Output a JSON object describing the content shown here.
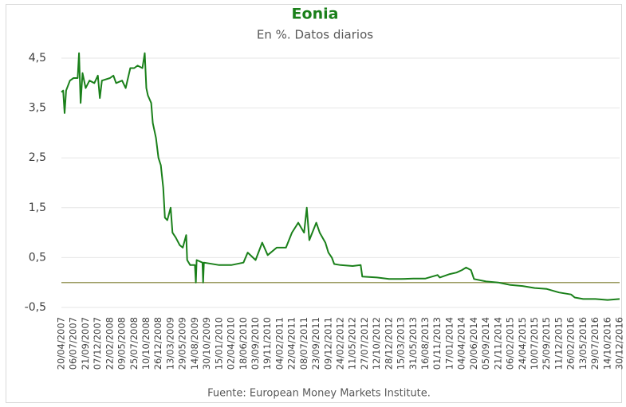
{
  "chart_data": {
    "type": "line",
    "title": "Eonia",
    "subtitle": "En %. Datos diarios",
    "source": "Fuente: European Money Markets Institute.",
    "x": [
      "2007-04-20",
      "2007-05-01",
      "2007-05-10",
      "2007-05-20",
      "2007-06-13",
      "2007-07-06",
      "2007-08-01",
      "2007-08-10",
      "2007-08-20",
      "2007-09-01",
      "2007-09-21",
      "2007-10-15",
      "2007-11-15",
      "2007-12-07",
      "2007-12-20",
      "2008-01-02",
      "2008-02-22",
      "2008-03-15",
      "2008-04-01",
      "2008-05-09",
      "2008-06-01",
      "2008-06-30",
      "2008-07-25",
      "2008-08-15",
      "2008-09-15",
      "2008-09-30",
      "2008-10-10",
      "2008-10-20",
      "2008-11-10",
      "2008-11-20",
      "2008-12-10",
      "2008-12-26",
      "2009-01-10",
      "2009-01-25",
      "2009-02-05",
      "2009-02-20",
      "2009-03-13",
      "2009-03-25",
      "2009-04-15",
      "2009-05-10",
      "2009-05-29",
      "2009-06-20",
      "2009-06-26",
      "2009-07-15",
      "2009-08-14",
      "2009-08-20",
      "2009-08-25",
      "2009-10-01",
      "2009-10-05",
      "2009-10-10",
      "2010-01-15",
      "2010-04-02",
      "2010-06-18",
      "2010-07-15",
      "2010-09-03",
      "2010-10-15",
      "2010-11-19",
      "2011-01-15",
      "2011-02-04",
      "2011-03-15",
      "2011-04-22",
      "2011-06-01",
      "2011-07-08",
      "2011-07-25",
      "2011-08-10",
      "2011-09-23",
      "2011-10-15",
      "2011-11-20",
      "2011-12-09",
      "2011-12-31",
      "2012-01-15",
      "2012-02-24",
      "2012-05-11",
      "2012-07-01",
      "2012-07-11",
      "2012-10-12",
      "2012-12-28",
      "2013-03-15",
      "2013-05-31",
      "2013-08-16",
      "2013-11-01",
      "2013-11-15",
      "2014-01-17",
      "2014-03-01",
      "2014-04-04",
      "2014-05-01",
      "2014-06-01",
      "2014-06-20",
      "2014-09-05",
      "2014-11-21",
      "2015-02-06",
      "2015-04-24",
      "2015-07-10",
      "2015-09-25",
      "2015-12-11",
      "2016-02-26",
      "2016-03-20",
      "2016-05-13",
      "2016-07-29",
      "2016-10-14",
      "2016-12-30"
    ],
    "series": [
      {
        "name": "Eonia",
        "color": "#1a801a",
        "values": [
          3.82,
          3.85,
          3.4,
          3.85,
          4.05,
          4.1,
          4.1,
          4.6,
          3.6,
          4.2,
          3.9,
          4.05,
          4.0,
          4.15,
          3.7,
          4.05,
          4.1,
          4.15,
          4.0,
          4.05,
          3.9,
          4.3,
          4.3,
          4.35,
          4.3,
          4.6,
          3.9,
          3.75,
          3.6,
          3.2,
          2.9,
          2.5,
          2.35,
          1.9,
          1.3,
          1.25,
          1.5,
          1.0,
          0.9,
          0.75,
          0.7,
          0.95,
          0.45,
          0.35,
          0.35,
          0.0,
          0.45,
          0.4,
          0.0,
          0.4,
          0.35,
          0.35,
          0.4,
          0.6,
          0.45,
          0.8,
          0.55,
          0.7,
          0.7,
          0.7,
          1.0,
          1.2,
          1.0,
          1.5,
          0.85,
          1.2,
          1.0,
          0.8,
          0.6,
          0.5,
          0.37,
          0.35,
          0.33,
          0.35,
          0.12,
          0.1,
          0.07,
          0.07,
          0.08,
          0.08,
          0.15,
          0.1,
          0.17,
          0.2,
          0.25,
          0.3,
          0.25,
          0.07,
          0.02,
          0.0,
          -0.05,
          -0.07,
          -0.11,
          -0.13,
          -0.2,
          -0.24,
          -0.3,
          -0.33,
          -0.33,
          -0.35,
          -0.33
        ]
      }
    ],
    "xlim": [
      "2007-04-20",
      "2016-12-30"
    ],
    "xticks": [
      {
        "value": "2007-04-20",
        "label": "20/04/2007"
      },
      {
        "value": "2007-07-06",
        "label": "06/07/2007"
      },
      {
        "value": "2007-09-21",
        "label": "21/09/2007"
      },
      {
        "value": "2007-12-07",
        "label": "07/12/2007"
      },
      {
        "value": "2008-02-22",
        "label": "22/02/2008"
      },
      {
        "value": "2008-05-09",
        "label": "09/05/2008"
      },
      {
        "value": "2008-07-25",
        "label": "25/07/2008"
      },
      {
        "value": "2008-10-10",
        "label": "10/10/2008"
      },
      {
        "value": "2008-12-26",
        "label": "26/12/2008"
      },
      {
        "value": "2009-03-13",
        "label": "13/03/2009"
      },
      {
        "value": "2009-05-29",
        "label": "29/05/2009"
      },
      {
        "value": "2009-08-14",
        "label": "14/08/2009"
      },
      {
        "value": "2009-10-30",
        "label": "30/10/2009"
      },
      {
        "value": "2010-01-15",
        "label": "15/01/2010"
      },
      {
        "value": "2010-04-02",
        "label": "02/04/2010"
      },
      {
        "value": "2010-06-18",
        "label": "18/06/2010"
      },
      {
        "value": "2010-09-03",
        "label": "03/09/2010"
      },
      {
        "value": "2010-11-19",
        "label": "19/11/2010"
      },
      {
        "value": "2011-02-04",
        "label": "04/02/2011"
      },
      {
        "value": "2011-04-22",
        "label": "22/04/2011"
      },
      {
        "value": "2011-07-08",
        "label": "08/07/2011"
      },
      {
        "value": "2011-09-23",
        "label": "23/09/2011"
      },
      {
        "value": "2011-12-09",
        "label": "09/12/2011"
      },
      {
        "value": "2012-02-24",
        "label": "24/02/2012"
      },
      {
        "value": "2012-05-11",
        "label": "11/05/2012"
      },
      {
        "value": "2012-07-27",
        "label": "27/07/2012"
      },
      {
        "value": "2012-10-12",
        "label": "12/10/2012"
      },
      {
        "value": "2012-12-28",
        "label": "28/12/2012"
      },
      {
        "value": "2013-03-15",
        "label": "15/03/2013"
      },
      {
        "value": "2013-05-31",
        "label": "31/05/2013"
      },
      {
        "value": "2013-08-16",
        "label": "16/08/2013"
      },
      {
        "value": "2013-11-01",
        "label": "01/11/2013"
      },
      {
        "value": "2014-01-17",
        "label": "17/01/2014"
      },
      {
        "value": "2014-04-04",
        "label": "04/04/2014"
      },
      {
        "value": "2014-06-20",
        "label": "20/06/2014"
      },
      {
        "value": "2014-09-05",
        "label": "05/09/2014"
      },
      {
        "value": "2014-11-21",
        "label": "21/11/2014"
      },
      {
        "value": "2015-02-06",
        "label": "06/02/2015"
      },
      {
        "value": "2015-04-24",
        "label": "24/04/2015"
      },
      {
        "value": "2015-07-10",
        "label": "10/07/2015"
      },
      {
        "value": "2015-09-25",
        "label": "25/09/2015"
      },
      {
        "value": "2015-12-11",
        "label": "11/12/2015"
      },
      {
        "value": "2016-02-26",
        "label": "26/02/2016"
      },
      {
        "value": "2016-05-13",
        "label": "13/05/2016"
      },
      {
        "value": "2016-07-29",
        "label": "29/07/2016"
      },
      {
        "value": "2016-10-14",
        "label": "14/10/2016"
      },
      {
        "value": "2016-12-30",
        "label": "30/12/2016"
      }
    ],
    "ylim": [
      -0.5,
      4.5
    ],
    "yticks": [
      {
        "value": -0.5,
        "label": "-0,5"
      },
      {
        "value": 0.5,
        "label": "0,5"
      },
      {
        "value": 1.5,
        "label": "1,5"
      },
      {
        "value": 2.5,
        "label": "2,5"
      },
      {
        "value": 3.5,
        "label": "3,5"
      },
      {
        "value": 4.5,
        "label": "4,5"
      }
    ],
    "reference_line": 0,
    "reference_color": "#9c9c62",
    "grid": true
  }
}
